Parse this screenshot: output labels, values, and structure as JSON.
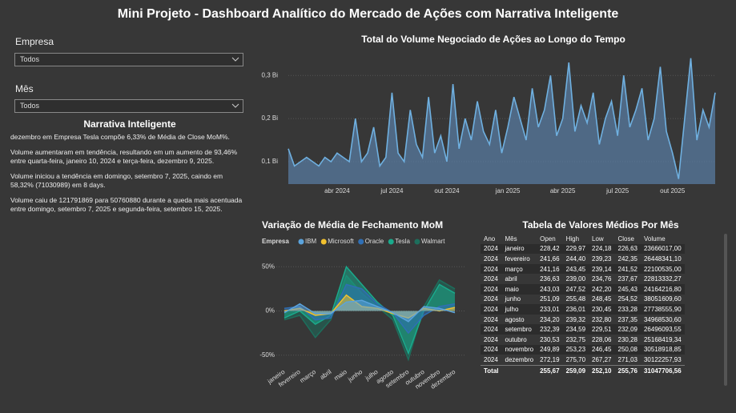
{
  "header": {
    "title": "Mini Projeto - Dashboard Analítico do Mercado de Ações com Narrativa Inteligente"
  },
  "filters": [
    {
      "label": "Empresa",
      "value": "Todos"
    },
    {
      "label": "Mês",
      "value": "Todos"
    }
  ],
  "narrative": {
    "title": "Narrativa Inteligente",
    "paragraphs": [
      "dezembro em Empresa Tesla compõe 6,33% de Média de Close MoM%.",
      "Volume aumentaram em tendência, resultando em um aumento de 93,46% entre quarta-feira, janeiro 10, 2024 e terça-feira, dezembro 9, 2025.",
      "Volume iniciou a tendência em domingo, setembro 7, 2025, caindo em 58,32% (71030989) em 8 days.",
      "Volume caiu de 121791869 para 50760880 durante a queda mais acentuada entre domingo, setembro 7, 2025 e segunda-feira, setembro 15, 2025."
    ]
  },
  "chart_data": [
    {
      "type": "area",
      "title": "Total do Volume Negociado de Ações ao Longo do Tempo",
      "color": "#6fb0e0",
      "categories": [
        null,
        null,
        null,
        null,
        null,
        null,
        null,
        null,
        "abr 2024",
        null,
        null,
        null,
        null,
        null,
        null,
        null,
        null,
        "jul 2024",
        null,
        null,
        null,
        null,
        null,
        null,
        null,
        null,
        "out 2024",
        null,
        null,
        null,
        null,
        null,
        null,
        null,
        null,
        null,
        "jan 2025",
        null,
        null,
        null,
        null,
        null,
        null,
        null,
        null,
        "abr 2025",
        null,
        null,
        null,
        null,
        null,
        null,
        null,
        null,
        "jul 2025",
        null,
        null,
        null,
        null,
        null,
        null,
        null,
        null,
        "out 2025",
        null,
        null,
        null,
        null,
        null,
        null,
        null
      ],
      "values": [
        0.13,
        0.09,
        0.1,
        0.11,
        0.1,
        0.09,
        0.11,
        0.1,
        0.12,
        0.11,
        0.1,
        0.2,
        0.1,
        0.12,
        0.18,
        0.09,
        0.11,
        0.26,
        0.12,
        0.1,
        0.22,
        0.14,
        0.11,
        0.25,
        0.12,
        0.16,
        0.1,
        0.28,
        0.13,
        0.2,
        0.15,
        0.24,
        0.17,
        0.14,
        0.22,
        0.12,
        0.18,
        0.25,
        0.2,
        0.15,
        0.27,
        0.18,
        0.22,
        0.3,
        0.16,
        0.2,
        0.33,
        0.17,
        0.23,
        0.19,
        0.26,
        0.14,
        0.2,
        0.24,
        0.16,
        0.3,
        0.18,
        0.22,
        0.27,
        0.15,
        0.2,
        0.32,
        0.17,
        0.12,
        0.06,
        0.2,
        0.34,
        0.15,
        0.22,
        0.18,
        0.26
      ],
      "ylim": [
        0.048,
        0.345
      ],
      "yticks": [
        {
          "value": 0.1,
          "label": "0,1 Bi"
        },
        {
          "value": 0.2,
          "label": "0,2 Bi"
        },
        {
          "value": 0.3,
          "label": "0,3 Bi"
        }
      ]
    },
    {
      "type": "area",
      "title": "Variação de Média de Fechamento MoM",
      "legend_title": "Empresa",
      "categories": [
        "janeiro",
        "fevereiro",
        "março",
        "abril",
        "maio",
        "junho",
        "julho",
        "agosto",
        "setembro",
        "outubro",
        "novembro",
        "dezembro"
      ],
      "series": [
        {
          "name": "IBM",
          "color": "#5ba3dc",
          "values": [
            -2,
            8,
            -3,
            -3,
            10,
            12,
            5,
            -2,
            -12,
            5,
            3,
            -2
          ]
        },
        {
          "name": "Microsoft",
          "color": "#f2c12e",
          "values": [
            0,
            3,
            -5,
            -3,
            18,
            5,
            3,
            -3,
            -8,
            3,
            0,
            4
          ]
        },
        {
          "name": "Oracle",
          "color": "#2f6fb5",
          "values": [
            3,
            5,
            -10,
            -8,
            30,
            25,
            8,
            -2,
            -25,
            -5,
            5,
            8
          ]
        },
        {
          "name": "Tesla",
          "color": "#1aaa8c",
          "values": [
            -8,
            0,
            -15,
            -5,
            50,
            30,
            10,
            -5,
            -48,
            0,
            30,
            20
          ]
        },
        {
          "name": "Walmart",
          "color": "#1d6e5c",
          "values": [
            -10,
            -5,
            -30,
            -10,
            40,
            20,
            5,
            -10,
            -55,
            5,
            35,
            25
          ]
        }
      ],
      "ylim": [
        -62,
        62
      ],
      "yticks": [
        {
          "value": -50,
          "label": "-50%"
        },
        {
          "value": 0,
          "label": "0%"
        },
        {
          "value": 50,
          "label": "50%"
        }
      ]
    }
  ],
  "table": {
    "title": "Tabela de Valores Médios Por Mês",
    "columns": [
      "Ano",
      "Mês",
      "Open",
      "High",
      "Low",
      "Close",
      "Volume"
    ],
    "rows": [
      [
        "2024",
        "janeiro",
        "228,42",
        "229,97",
        "224,18",
        "226,63",
        "23666017,00"
      ],
      [
        "2024",
        "fevereiro",
        "241,66",
        "244,40",
        "239,23",
        "242,35",
        "26448341,10"
      ],
      [
        "2024",
        "março",
        "241,16",
        "243,45",
        "239,14",
        "241,52",
        "22100535,00"
      ],
      [
        "2024",
        "abril",
        "236,63",
        "239,00",
        "234,76",
        "237,67",
        "22813332,27"
      ],
      [
        "2024",
        "maio",
        "243,03",
        "247,52",
        "242,20",
        "245,43",
        "24164216,80"
      ],
      [
        "2024",
        "junho",
        "251,09",
        "255,48",
        "248,45",
        "254,52",
        "38051609,60"
      ],
      [
        "2024",
        "julho",
        "233,01",
        "236,01",
        "230,45",
        "233,28",
        "27738555,90"
      ],
      [
        "2024",
        "agosto",
        "234,20",
        "239,32",
        "232,80",
        "237,35",
        "34968530,60"
      ],
      [
        "2024",
        "setembro",
        "232,39",
        "234,59",
        "229,51",
        "232,09",
        "26496093,55"
      ],
      [
        "2024",
        "outubro",
        "230,53",
        "232,75",
        "228,06",
        "230,28",
        "25168419,34"
      ],
      [
        "2024",
        "novembro",
        "249,89",
        "253,23",
        "246,45",
        "250,08",
        "30518918,85"
      ],
      [
        "2024",
        "dezembro",
        "272,19",
        "275,70",
        "267,27",
        "271,03",
        "30122257,93"
      ]
    ],
    "total": [
      "Total",
      "",
      "255,67",
      "259,09",
      "252,10",
      "255,76",
      "31047706,56"
    ]
  }
}
